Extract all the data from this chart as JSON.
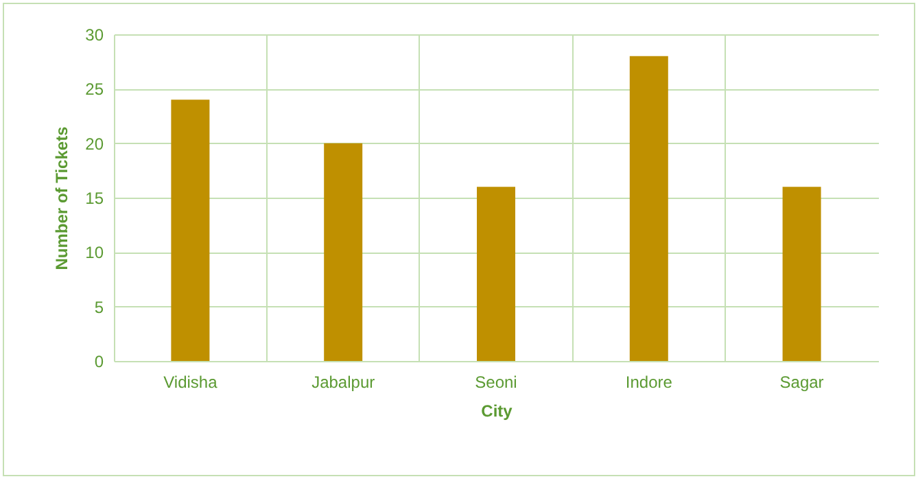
{
  "chart_data": {
    "type": "bar",
    "xlabel": "City",
    "ylabel": "Number of Tickets",
    "categories": [
      "Vidisha",
      "Jabalpur",
      "Seoni",
      "Indore",
      "Sagar"
    ],
    "values": [
      24,
      20,
      16,
      28,
      16
    ],
    "color": "#bf9000",
    "ylim": [
      0,
      30
    ],
    "yticks": [
      0,
      5,
      10,
      15,
      20,
      25,
      30
    ],
    "grid": true
  }
}
